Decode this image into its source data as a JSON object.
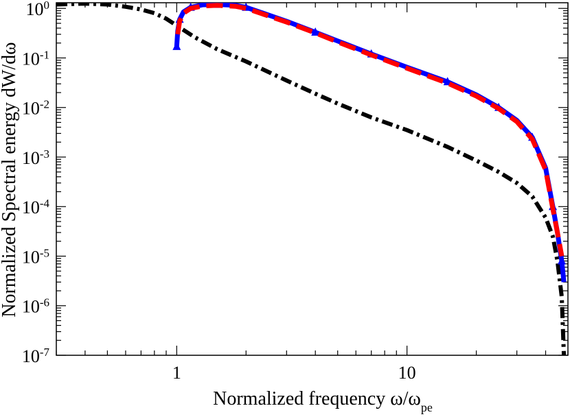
{
  "chart_data": {
    "type": "line",
    "xlabel": "Normalized frequency ω/ω",
    "xlabel_sub": "pe",
    "ylabel": "Normalized Spectral energy dW/dω",
    "x_scale": "log",
    "y_scale": "log",
    "xlim": [
      0.3,
      50
    ],
    "ylim": [
      1e-07,
      1.3
    ],
    "grid": false,
    "x_ticks": [
      {
        "value": 1,
        "label": "1"
      },
      {
        "value": 10,
        "label": "10"
      }
    ],
    "y_ticks": [
      {
        "value": 1,
        "base": "10",
        "exp": "0"
      },
      {
        "value": 0.1,
        "base": "10",
        "exp": "-1"
      },
      {
        "value": 0.01,
        "base": "10",
        "exp": "-2"
      },
      {
        "value": 0.001,
        "base": "10",
        "exp": "-3"
      },
      {
        "value": 0.0001,
        "base": "10",
        "exp": "-4"
      },
      {
        "value": 1e-05,
        "base": "10",
        "exp": "-5"
      },
      {
        "value": 1e-06,
        "base": "10",
        "exp": "-6"
      },
      {
        "value": 1e-07,
        "base": "10",
        "exp": "-7"
      }
    ],
    "series": [
      {
        "style": "dash-dot",
        "color": "#000000",
        "x": [
          0.3,
          0.4,
          0.5,
          0.6,
          0.7,
          0.8,
          0.9,
          1.0,
          1.2,
          1.5,
          2,
          3,
          4,
          5,
          7,
          10,
          15,
          20,
          25,
          30,
          35,
          40,
          43,
          45,
          47,
          48
        ],
        "y": [
          1.2,
          1.25,
          1.2,
          1.08,
          0.95,
          0.8,
          0.62,
          0.45,
          0.26,
          0.15,
          0.085,
          0.035,
          0.019,
          0.012,
          0.0063,
          0.0035,
          0.0016,
          0.00085,
          0.0005,
          0.0003,
          0.00016,
          6e-05,
          2.5e-05,
          8e-06,
          1.5e-06,
          1e-07
        ]
      },
      {
        "style": "solid-triangle",
        "color": "#0000ff",
        "x": [
          1.0,
          1.01,
          1.03,
          1.07,
          1.15,
          1.3,
          1.5,
          1.8,
          2,
          3,
          4,
          5,
          7,
          10,
          15,
          20,
          25,
          30,
          35,
          40,
          43,
          45,
          47,
          48
        ],
        "y": [
          0.17,
          0.35,
          0.6,
          0.85,
          1.05,
          1.18,
          1.2,
          1.15,
          1.05,
          0.55,
          0.33,
          0.22,
          0.12,
          0.065,
          0.033,
          0.018,
          0.01,
          0.0055,
          0.0025,
          0.0006,
          0.0001,
          3e-05,
          8e-06,
          3e-06
        ]
      },
      {
        "style": "dashed",
        "color": "#ff0000",
        "x": [
          1.01,
          1.03,
          1.07,
          1.15,
          1.3,
          1.5,
          1.8,
          2,
          3,
          4,
          5,
          7,
          10,
          15,
          20,
          25,
          30,
          35,
          40,
          43,
          45,
          47
        ],
        "y": [
          0.3,
          0.55,
          0.8,
          1.0,
          1.12,
          1.15,
          1.1,
          1.0,
          0.53,
          0.32,
          0.21,
          0.115,
          0.062,
          0.031,
          0.017,
          0.0095,
          0.0052,
          0.0023,
          0.00055,
          9e-05,
          3e-05,
          1e-05
        ]
      }
    ]
  }
}
